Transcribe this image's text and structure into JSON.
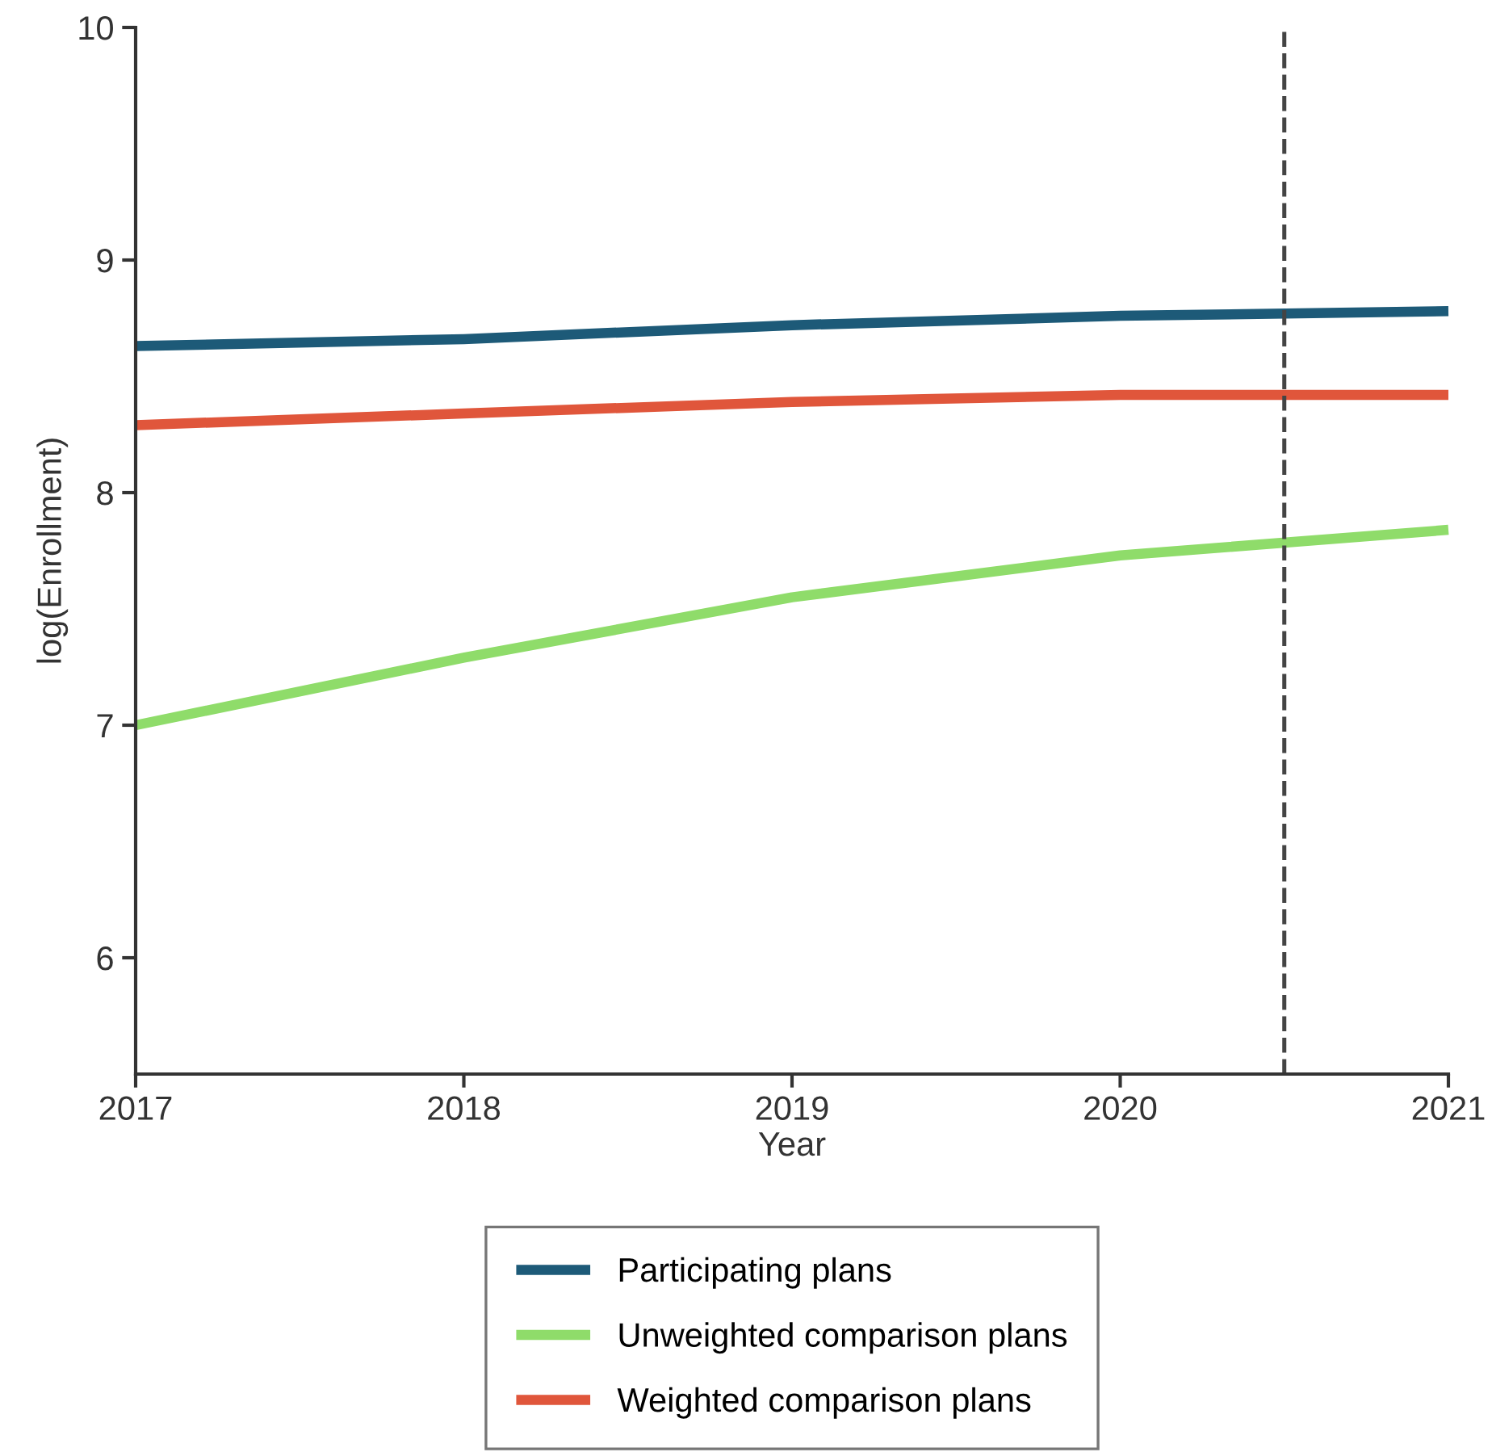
{
  "chart_data": {
    "type": "line",
    "xlabel": "Year",
    "ylabel": "log(Enrollment)",
    "x": [
      2017,
      2018,
      2019,
      2020,
      2021
    ],
    "series": [
      {
        "name": "Participating plans",
        "color": "#1d5a78",
        "values": [
          8.63,
          8.66,
          8.72,
          8.76,
          8.78
        ]
      },
      {
        "name": "Unweighted comparison plans",
        "color": "#8fdc6a",
        "values": [
          7.0,
          7.29,
          7.55,
          7.73,
          7.84
        ]
      },
      {
        "name": "Weighted comparison plans",
        "color": "#e0563b",
        "values": [
          8.29,
          8.34,
          8.39,
          8.42,
          8.42
        ]
      }
    ],
    "xlim": [
      2017,
      2021
    ],
    "xticks": [
      2017,
      2018,
      2019,
      2020,
      2021
    ],
    "ylim": [
      5.5,
      10
    ],
    "yticks": [
      6,
      7,
      8,
      9,
      10
    ],
    "ref_lines": [
      {
        "axis": "x",
        "value": 2020.5,
        "color": "#444444",
        "line_style": "dashed"
      }
    ],
    "grid": false,
    "legend": "bottom",
    "marker": "none",
    "line_style": "solid"
  }
}
